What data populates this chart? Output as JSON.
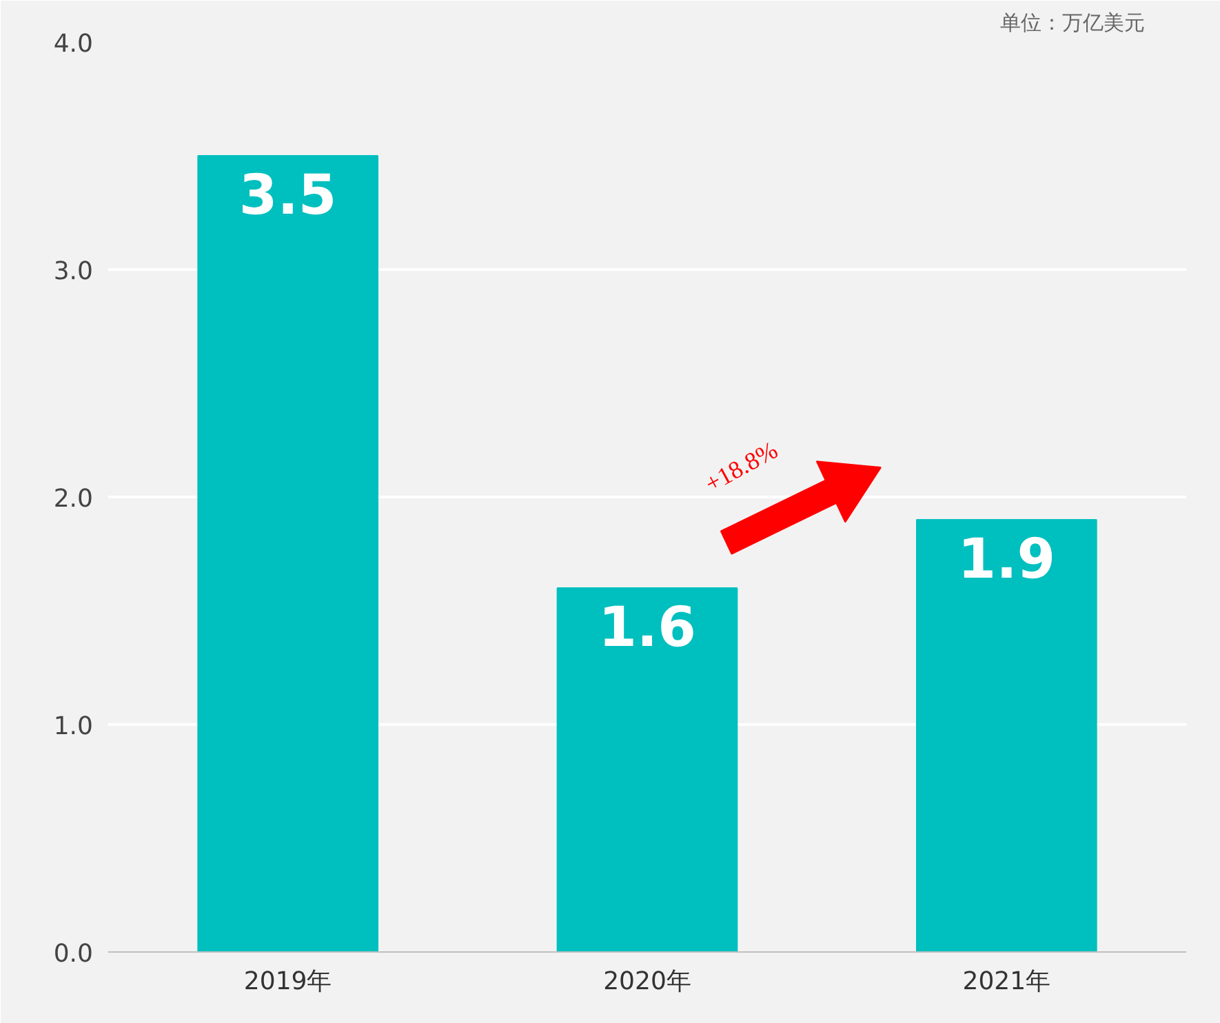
{
  "chart_data": {
    "type": "bar",
    "categories": [
      "2019年",
      "2020年",
      "2021年"
    ],
    "values": [
      3.5,
      1.6,
      1.9
    ],
    "color": "#00bfbf",
    "data_labels": true,
    "ylim": [
      0,
      4
    ],
    "yticks": [
      {
        "value": 0,
        "label": "0.0"
      },
      {
        "value": 1,
        "label": "1.0"
      },
      {
        "value": 2,
        "label": "2.0"
      },
      {
        "value": 3,
        "label": "3.0"
      },
      {
        "value": 4,
        "label": "4.0"
      }
    ],
    "grid": "y",
    "annotations": [
      "单位：万亿美元",
      "+18.8%"
    ]
  }
}
